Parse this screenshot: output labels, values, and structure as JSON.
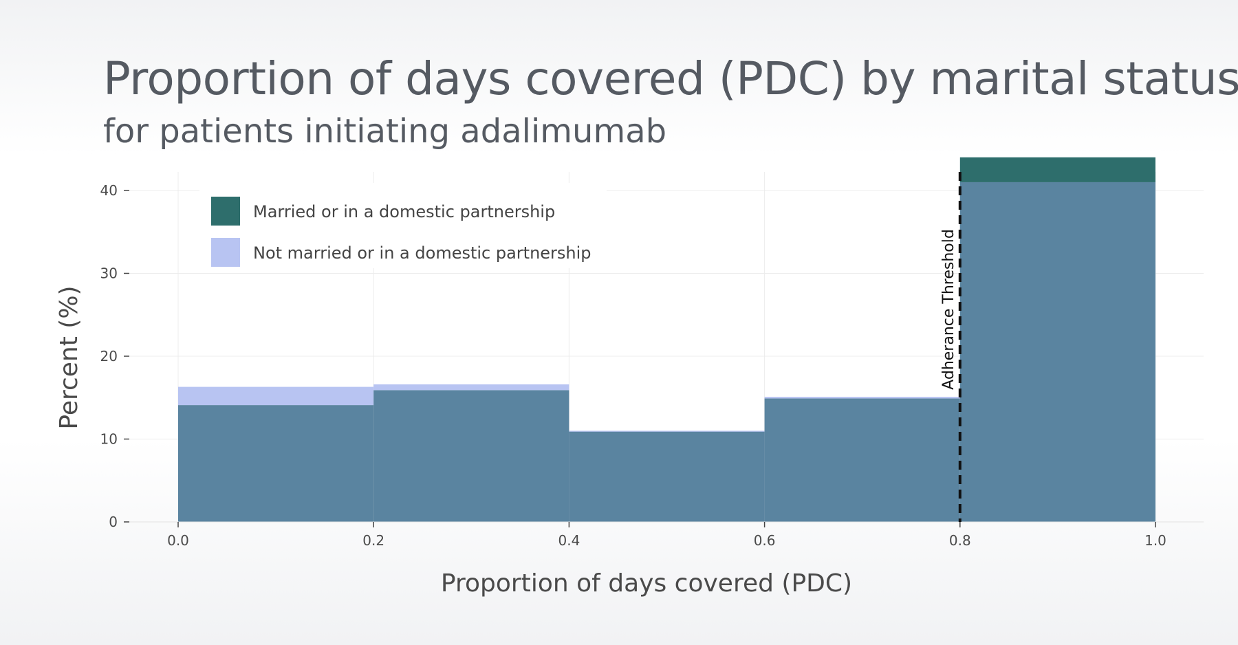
{
  "chart_data": {
    "type": "bar",
    "title": "Proportion of days covered (PDC) by marital status",
    "subtitle": "for patients initiating adalimumab",
    "xlabel": "Proportion of days covered (PDC)",
    "ylabel": "Percent (%)",
    "bins": [
      [
        0.0,
        0.2
      ],
      [
        0.2,
        0.4
      ],
      [
        0.4,
        0.6
      ],
      [
        0.6,
        0.8
      ],
      [
        0.8,
        1.0
      ]
    ],
    "series": [
      {
        "name": "Married or in a domestic partnership",
        "color": "#2e6e6c",
        "values": [
          14.1,
          15.9,
          10.9,
          14.9,
          44.0
        ]
      },
      {
        "name": "Not married or in a domestic partnership",
        "color": "#b8c4f2",
        "values": [
          16.3,
          16.6,
          11.0,
          15.1,
          41.0
        ]
      }
    ],
    "overlap_color": "#5a84a0",
    "xlim": [
      0.0,
      1.0
    ],
    "ylim": [
      0,
      44
    ],
    "x_ticks": [
      "0.0",
      "0.2",
      "0.4",
      "0.6",
      "0.8",
      "1.0"
    ],
    "y_ticks": [
      "0",
      "10",
      "20",
      "30",
      "40"
    ],
    "grid": true,
    "legend_position": "top-left",
    "annotations": [
      {
        "type": "vline",
        "x": 0.8,
        "style": "dashed",
        "label": "Adherance Threshold"
      }
    ]
  }
}
